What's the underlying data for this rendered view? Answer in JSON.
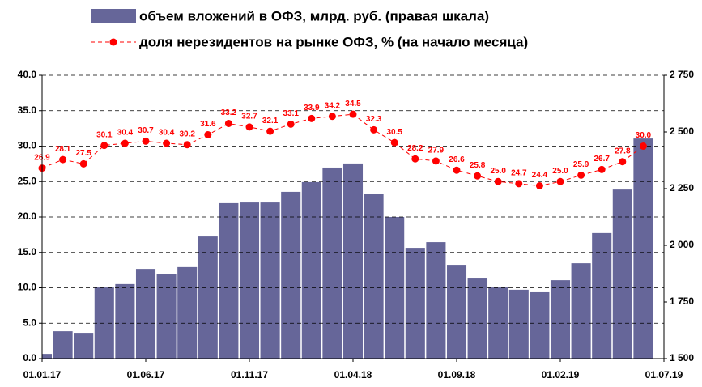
{
  "chart_data": {
    "type": "bar_line",
    "legend_position": "top",
    "xlim": [
      0,
      30
    ],
    "xticks": [
      {
        "value": 0,
        "label": "01.01.17"
      },
      {
        "value": 5,
        "label": "01.06.17"
      },
      {
        "value": 10,
        "label": "01.11.17"
      },
      {
        "value": 15,
        "label": "01.04.18"
      },
      {
        "value": 20,
        "label": "01.09.18"
      },
      {
        "value": 25,
        "label": "01.02.19"
      },
      {
        "value": 30,
        "label": "01.07.19"
      }
    ],
    "x": [
      0,
      1,
      2,
      3,
      4,
      5,
      6,
      7,
      8,
      9,
      10,
      11,
      12,
      13,
      14,
      15,
      16,
      17,
      18,
      19,
      20,
      21,
      22,
      23,
      24,
      25,
      26,
      27,
      28,
      29
    ],
    "ylim": [
      0,
      40
    ],
    "yticks": [
      {
        "value": 0,
        "label": "0.0"
      },
      {
        "value": 5,
        "label": "5.0"
      },
      {
        "value": 10,
        "label": "10.0"
      },
      {
        "value": 15,
        "label": "15.0"
      },
      {
        "value": 20,
        "label": "20.0"
      },
      {
        "value": 25,
        "label": "25.0"
      },
      {
        "value": 30,
        "label": "30.0"
      },
      {
        "value": 35,
        "label": "35.0"
      },
      {
        "value": 40,
        "label": "40.0"
      }
    ],
    "y2lim": [
      1500,
      2750
    ],
    "y2ticks": [
      {
        "value": 1500,
        "label": "1 500"
      },
      {
        "value": 1750,
        "label": "1 750"
      },
      {
        "value": 2000,
        "label": "2 000"
      },
      {
        "value": 2250,
        "label": "2 250"
      },
      {
        "value": 2500,
        "label": "2 500"
      },
      {
        "value": 2750,
        "label": "2 750"
      }
    ],
    "grid": true,
    "series": [
      {
        "name": "объем вложений в ОФЗ, млрд. руб. (правая шкала)",
        "type": "bar",
        "axis": "y2",
        "color": "#666699",
        "values": [
          1521,
          1621,
          1614,
          1814,
          1829,
          1896,
          1875,
          1904,
          2039,
          2186,
          2189,
          2189,
          2236,
          2279,
          2343,
          2361,
          2225,
          2125,
          1989,
          2014,
          1914,
          1857,
          1814,
          1804,
          1793,
          1846,
          1921,
          2054,
          2246,
          2471
        ]
      },
      {
        "name": "доля нерезидентов на рынке ОФЗ, % (на начало месяца)",
        "type": "line",
        "axis": "y",
        "color": "#ff0000",
        "values": [
          26.9,
          28.1,
          27.5,
          30.1,
          30.4,
          30.7,
          30.4,
          30.2,
          31.6,
          33.2,
          32.7,
          32.1,
          33.1,
          33.9,
          34.2,
          34.5,
          32.3,
          30.5,
          28.2,
          27.9,
          26.6,
          25.8,
          25.0,
          24.7,
          24.4,
          25.0,
          25.9,
          26.7,
          27.8,
          30.0
        ],
        "value_labels": [
          "26.9",
          "28.1",
          "27.5",
          "30.1",
          "30.4",
          "30.7",
          "30.4",
          "30.2",
          "31.6",
          "33.2",
          "32.7",
          "32.1",
          "33.1",
          "33.9",
          "34.2",
          "34.5",
          "32.3",
          "30.5",
          "28.2",
          "27.9",
          "26.6",
          "25.8",
          "25.0",
          "24.7",
          "24.4",
          "25.0",
          "25.9",
          "26.7",
          "27.8",
          "30.0"
        ]
      }
    ]
  }
}
